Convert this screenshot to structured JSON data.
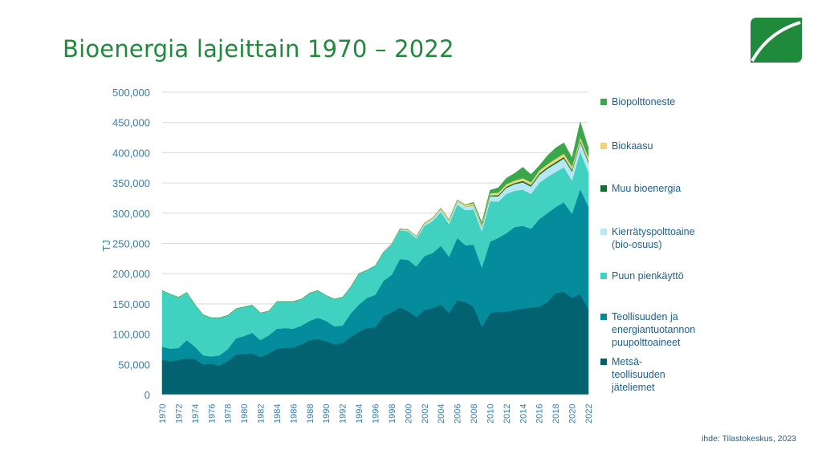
{
  "title": "Bioenergia lajeittain 1970 – 2022",
  "source": "ihde: Tilastokeskus, 2023",
  "logo": "leaf-logo",
  "colors": {
    "title": "#1f8a3c",
    "axis_text": "#3b7da8",
    "grid": "#d9d9d9"
  },
  "chart_data": {
    "type": "area",
    "stacked": true,
    "ylabel": "TJ",
    "xlabel": "",
    "ylim": [
      0,
      500000
    ],
    "yticks": [
      "0",
      "50,000",
      "100,000",
      "150,000",
      "200,000",
      "250,000",
      "300,000",
      "350,000",
      "400,000",
      "450,000",
      "500,000"
    ],
    "xticks": [
      "1970",
      "1972",
      "1974",
      "1976",
      "1978",
      "1980",
      "1982",
      "1984",
      "1986",
      "1988",
      "1990",
      "1992",
      "1994",
      "1996",
      "1998",
      "2000",
      "2002",
      "2004",
      "2006",
      "2008",
      "2010",
      "2012",
      "2014",
      "2016",
      "2018",
      "2020",
      "2022"
    ],
    "grid": true,
    "legend_position": "right",
    "x": [
      1970,
      1971,
      1972,
      1973,
      1974,
      1975,
      1976,
      1977,
      1978,
      1979,
      1980,
      1981,
      1982,
      1983,
      1984,
      1985,
      1986,
      1987,
      1988,
      1989,
      1990,
      1991,
      1992,
      1993,
      1994,
      1995,
      1996,
      1997,
      1998,
      1999,
      2000,
      2001,
      2002,
      2003,
      2004,
      2005,
      2006,
      2007,
      2008,
      2009,
      2010,
      2011,
      2012,
      2013,
      2014,
      2015,
      2016,
      2017,
      2018,
      2019,
      2020,
      2021,
      2022
    ],
    "series": [
      {
        "name": "Metsä-\nteollisuuden\njäteliemet",
        "color": "#02626f",
        "values": [
          58000,
          55000,
          57000,
          60000,
          59000,
          50000,
          51000,
          48000,
          55000,
          66000,
          67000,
          68000,
          62000,
          68000,
          76000,
          77000,
          78000,
          83000,
          90000,
          92000,
          88000,
          83000,
          85000,
          95000,
          104000,
          110000,
          111000,
          130000,
          136000,
          144000,
          138000,
          128000,
          140000,
          143000,
          149000,
          135000,
          156000,
          153000,
          145000,
          112000,
          135000,
          137000,
          137000,
          140000,
          142000,
          144000,
          145000,
          153000,
          168000,
          170000,
          160000,
          166000,
          141000
        ]
      },
      {
        "name": "Teollisuuden ja\nenergiantuotannon\npuupolttoaineet",
        "color": "#048b9c",
        "values": [
          21000,
          21000,
          20000,
          30000,
          20000,
          15000,
          12000,
          17000,
          20000,
          27000,
          30000,
          34000,
          28000,
          30000,
          33000,
          33000,
          31000,
          31000,
          32000,
          35000,
          34000,
          30000,
          29000,
          39000,
          45000,
          50000,
          54000,
          58000,
          62000,
          80000,
          85000,
          84000,
          89000,
          91000,
          97000,
          93000,
          103000,
          94000,
          103000,
          98000,
          118000,
          122000,
          130000,
          137000,
          137000,
          130000,
          145000,
          147000,
          142000,
          148000,
          139000,
          174000,
          170000
        ]
      },
      {
        "name": "Puun pienkäyttö",
        "color": "#40d1c1",
        "values": [
          93000,
          90000,
          84000,
          79000,
          70000,
          67000,
          64000,
          62000,
          56000,
          49000,
          48000,
          46000,
          45000,
          40000,
          45000,
          44000,
          45000,
          44000,
          46000,
          45000,
          42000,
          45000,
          47000,
          44000,
          51000,
          46000,
          48000,
          47000,
          50000,
          48000,
          47000,
          46000,
          50000,
          53000,
          56000,
          54000,
          55000,
          58000,
          58000,
          60000,
          67000,
          60000,
          65000,
          60000,
          60000,
          58000,
          60000,
          60000,
          58000,
          58000,
          55000,
          62000,
          57000
        ]
      },
      {
        "name": "Kierrätyspolttoaine\n(bio-osuus)",
        "color": "#b7e6f5",
        "values": [
          0,
          0,
          0,
          0,
          0,
          0,
          0,
          0,
          0,
          0,
          0,
          0,
          0,
          0,
          0,
          0,
          0,
          0,
          0,
          0,
          0,
          0,
          0,
          0,
          0,
          0,
          0,
          500,
          1000,
          1500,
          2000,
          2500,
          3000,
          3500,
          4000,
          4500,
          5000,
          6000,
          6500,
          7000,
          8000,
          9000,
          10000,
          11000,
          12000,
          12000,
          13000,
          13500,
          14000,
          14500,
          15000,
          15500,
          16000
        ]
      },
      {
        "name": "Muu bioenergia",
        "color": "#0f6e34",
        "values": [
          0,
          0,
          0,
          0,
          0,
          0,
          0,
          0,
          0,
          0,
          0,
          0,
          0,
          0,
          0,
          0,
          0,
          0,
          0,
          0,
          0,
          0,
          0,
          0,
          0,
          0,
          0,
          0,
          0,
          0,
          0,
          0,
          0,
          0,
          0,
          0,
          0,
          0,
          500,
          1000,
          1500,
          2000,
          2000,
          2000,
          2500,
          2500,
          2500,
          2500,
          2500,
          2500,
          2500,
          2500,
          2500
        ]
      },
      {
        "name": "Biokaasu",
        "color": "#f1d37a",
        "values": [
          0,
          0,
          0,
          0,
          0,
          0,
          0,
          0,
          0,
          0,
          0,
          0,
          0,
          0,
          0,
          0,
          0,
          0,
          0,
          0,
          0,
          0,
          0,
          0,
          0,
          0,
          0,
          0,
          0,
          500,
          1000,
          1500,
          2000,
          2000,
          2500,
          2500,
          3000,
          3000,
          3500,
          3500,
          3500,
          4000,
          4000,
          4000,
          4500,
          4500,
          5000,
          5000,
          5500,
          5500,
          6000,
          6000,
          6500
        ]
      },
      {
        "name": "Biopolttoneste",
        "color": "#3aa84a",
        "values": [
          0,
          0,
          0,
          0,
          0,
          0,
          0,
          0,
          0,
          0,
          0,
          0,
          0,
          0,
          0,
          0,
          0,
          0,
          0,
          0,
          0,
          0,
          0,
          0,
          0,
          0,
          0,
          0,
          0,
          0,
          0,
          0,
          0,
          0,
          0,
          0,
          0,
          0,
          1500,
          3000,
          5000,
          8000,
          10000,
          12000,
          18000,
          13000,
          8000,
          14000,
          18000,
          18000,
          14000,
          25000,
          15000
        ]
      }
    ]
  }
}
